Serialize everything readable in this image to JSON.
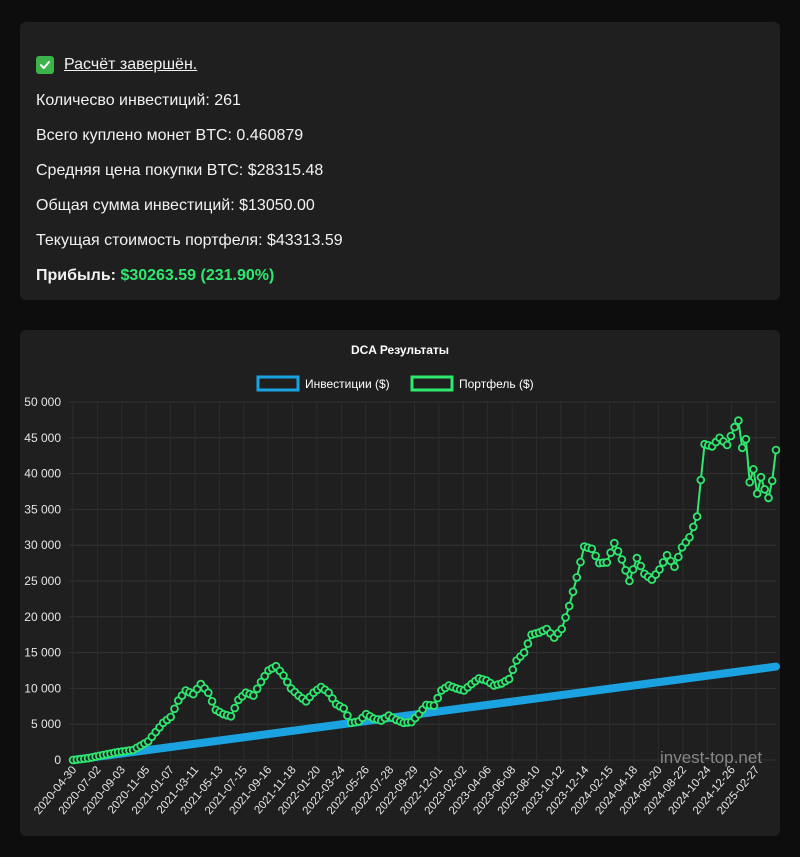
{
  "summary": {
    "status_label": "Расчёт завершён.",
    "investments_count": "Количесво инвестиций: 261",
    "btc_bought": "Всего куплено монет BTC: 0.460879",
    "avg_price": "Средняя цена покупки BTC: $28315.48",
    "total_invested": "Общая сумма инвестиций: $13050.00",
    "portfolio_value": "Текущая стоимость портфеля: $43313.59",
    "profit_label": "Прибыль:",
    "profit_value": "$30263.59 (231.90%)"
  },
  "colors": {
    "accent_green": "#2ee86f",
    "invest_blue": "#1aa3e0",
    "portfolio_green": "#2ee86f",
    "check_green": "#3cb24a"
  },
  "watermark": "invest-top.net",
  "chart_data": {
    "type": "line",
    "title": "DCA Результаты",
    "legend_position": "top",
    "grid": true,
    "ylim": [
      0,
      50000
    ],
    "y_ticks": [
      "0",
      "5 000",
      "10 000",
      "15 000",
      "20 000",
      "25 000",
      "30 000",
      "35 000",
      "40 000",
      "45 000",
      "50 000"
    ],
    "x_ticks": [
      "2020-04-30",
      "2020-07-02",
      "2020-09-03",
      "2020-11-05",
      "2021-01-07",
      "2021-03-11",
      "2021-05-13",
      "2021-07-15",
      "2021-09-16",
      "2021-11-18",
      "2022-01-20",
      "2022-03-24",
      "2022-05-26",
      "2022-07-28",
      "2022-09-29",
      "2022-12-01",
      "2023-02-02",
      "2023-04-06",
      "2023-06-08",
      "2023-08-10",
      "2023-10-12",
      "2023-12-14",
      "2024-02-15",
      "2024-04-18",
      "2024-06-20",
      "2024-08-22",
      "2024-10-24",
      "2024-12-26",
      "2025-02-27"
    ],
    "series": [
      {
        "name": "Инвестиции ($)",
        "color": "#1aa3e0",
        "start": 0,
        "end": 13050
      },
      {
        "name": "Портфель ($)",
        "color": "#2ee86f",
        "anchors": [
          [
            0,
            0
          ],
          [
            4,
            250
          ],
          [
            8,
            700
          ],
          [
            12,
            1100
          ],
          [
            16,
            1400
          ],
          [
            20,
            2600
          ],
          [
            24,
            5200
          ],
          [
            26,
            6000
          ],
          [
            28,
            8300
          ],
          [
            30,
            9700
          ],
          [
            32,
            9200
          ],
          [
            34,
            10600
          ],
          [
            36,
            9400
          ],
          [
            38,
            7000
          ],
          [
            40,
            6400
          ],
          [
            42,
            6100
          ],
          [
            44,
            8400
          ],
          [
            46,
            9400
          ],
          [
            48,
            9000
          ],
          [
            50,
            10900
          ],
          [
            52,
            12500
          ],
          [
            54,
            13100
          ],
          [
            56,
            11800
          ],
          [
            58,
            10000
          ],
          [
            60,
            9000
          ],
          [
            62,
            8200
          ],
          [
            64,
            9400
          ],
          [
            66,
            10200
          ],
          [
            68,
            9400
          ],
          [
            70,
            7800
          ],
          [
            72,
            7200
          ],
          [
            74,
            5200
          ],
          [
            76,
            5400
          ],
          [
            78,
            6400
          ],
          [
            80,
            5800
          ],
          [
            82,
            5500
          ],
          [
            84,
            6200
          ],
          [
            86,
            5600
          ],
          [
            88,
            5200
          ],
          [
            90,
            5300
          ],
          [
            92,
            6400
          ],
          [
            94,
            7700
          ],
          [
            96,
            7600
          ],
          [
            98,
            9700
          ],
          [
            100,
            10400
          ],
          [
            102,
            10000
          ],
          [
            104,
            9700
          ],
          [
            106,
            10600
          ],
          [
            108,
            11400
          ],
          [
            110,
            11100
          ],
          [
            112,
            10400
          ],
          [
            114,
            10700
          ],
          [
            116,
            11300
          ],
          [
            118,
            13900
          ],
          [
            120,
            15000
          ],
          [
            122,
            17500
          ],
          [
            124,
            17800
          ],
          [
            126,
            18300
          ],
          [
            128,
            17100
          ],
          [
            130,
            18300
          ],
          [
            132,
            21500
          ],
          [
            134,
            25500
          ],
          [
            136,
            29800
          ],
          [
            138,
            29500
          ],
          [
            140,
            27500
          ],
          [
            142,
            27600
          ],
          [
            144,
            30300
          ],
          [
            146,
            28000
          ],
          [
            148,
            25000
          ],
          [
            150,
            28200
          ],
          [
            152,
            26000
          ],
          [
            154,
            25200
          ],
          [
            156,
            26600
          ],
          [
            158,
            28600
          ],
          [
            160,
            27000
          ],
          [
            162,
            29700
          ],
          [
            164,
            31100
          ],
          [
            166,
            34000
          ],
          [
            167,
            39100
          ],
          [
            168,
            44100
          ],
          [
            170,
            43800
          ],
          [
            172,
            45000
          ],
          [
            174,
            44000
          ],
          [
            176,
            46500
          ],
          [
            177,
            47400
          ],
          [
            178,
            43600
          ],
          [
            179,
            44800
          ],
          [
            180,
            38800
          ],
          [
            181,
            40600
          ],
          [
            182,
            37200
          ],
          [
            183,
            39500
          ],
          [
            184,
            37800
          ],
          [
            185,
            36600
          ],
          [
            186,
            39000
          ],
          [
            187,
            43300
          ]
        ]
      }
    ]
  }
}
